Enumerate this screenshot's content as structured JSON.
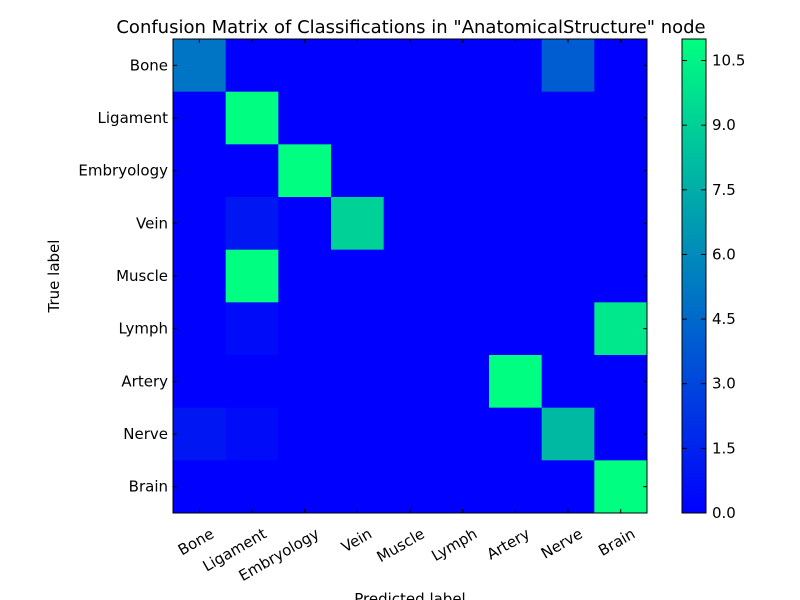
{
  "chart_data": {
    "type": "heatmap",
    "title": "Confusion Matrix of Classifications in \"AnatomicalStructure\" node",
    "xlabel": "Predicted label",
    "ylabel": "True label",
    "x_categories": [
      "Bone",
      "Ligament",
      "Embryology",
      "Vein",
      "Muscle",
      "Lymph",
      "Artery",
      "Nerve",
      "Brain"
    ],
    "y_categories": [
      "Bone",
      "Ligament",
      "Embryology",
      "Vein",
      "Muscle",
      "Lymph",
      "Artery",
      "Nerve",
      "Brain"
    ],
    "values": [
      [
        5,
        0,
        0,
        0,
        0,
        0,
        0,
        4,
        0
      ],
      [
        0,
        11,
        0,
        0,
        0,
        0,
        0,
        0,
        0
      ],
      [
        0,
        0,
        11,
        0,
        0,
        0,
        0,
        0,
        0
      ],
      [
        0,
        1,
        0,
        9,
        0,
        0,
        0,
        0,
        0
      ],
      [
        0,
        11,
        0,
        0,
        0,
        0,
        0,
        0,
        0
      ],
      [
        0,
        0.5,
        0,
        0,
        0,
        0,
        0,
        0,
        10
      ],
      [
        0,
        0,
        0,
        0,
        0,
        0,
        11,
        0,
        0
      ],
      [
        1,
        0.5,
        0,
        0,
        0,
        0,
        0,
        8,
        0
      ],
      [
        0,
        0,
        0,
        0,
        0,
        0,
        0,
        0,
        11
      ]
    ],
    "vmin": 0,
    "vmax": 11,
    "colormap": "winter",
    "colormap_low": "#0000ff",
    "colormap_high": "#00ff80",
    "colorbar_ticks": [
      "0.0",
      "1.5",
      "3.0",
      "4.5",
      "6.0",
      "7.5",
      "9.0",
      "10.5"
    ],
    "grid": false
  }
}
